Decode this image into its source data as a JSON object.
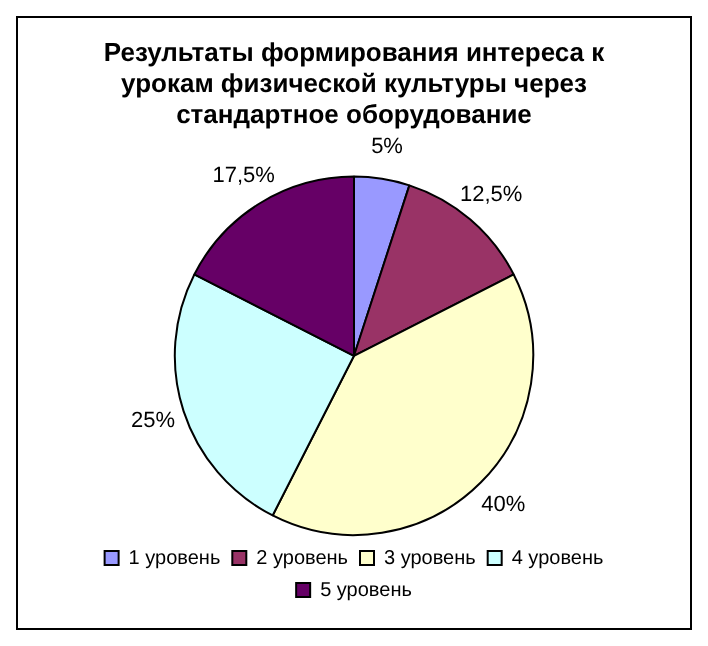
{
  "chart_data": {
    "type": "pie",
    "title": "Результаты формирования интереса к урокам физической культуры через стандартное оборудование",
    "categories": [
      "1 уровень",
      "2 уровень",
      "3 уровень",
      "4 уровень",
      "5 уровень"
    ],
    "values": [
      5,
      12.5,
      40,
      25,
      17.5
    ],
    "value_labels": [
      "5%",
      "12,5%",
      "40%",
      "25%",
      "17,5%"
    ],
    "colors": [
      "#9999ff",
      "#993366",
      "#ffffcc",
      "#ccffff",
      "#660066"
    ],
    "legend": "bottom"
  }
}
